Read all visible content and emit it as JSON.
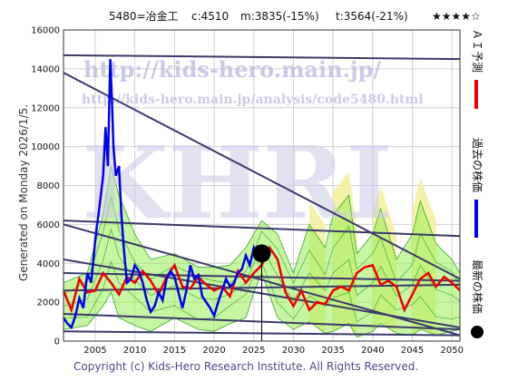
{
  "header": {
    "code_name": "5480=冶金工",
    "current": "c:4510",
    "m_value": "m:3835(-15%)",
    "t_value": "t:3564(-21%)",
    "rating": "★★★★☆"
  },
  "side_text": "Generated on Monday 2026/1/5.",
  "legend": {
    "ai_forecast": "ＡＩ予測",
    "past_price": "過去の株価",
    "latest_price": "最新の株価"
  },
  "watermark": {
    "big": "KHRI",
    "url1": "http://kids-hero.main.jp/",
    "url2": "http://kids-hero.main.jp/analysis/code5480.html"
  },
  "copyright": "Copyright (c) Kids-Hero Research Institute. All Rights Reserved.",
  "colors": {
    "past": "#0000ee",
    "forecast": "#ee0000",
    "band_fill": "#99ee55",
    "band_line": "#33aa22",
    "yellow_fill": "#f5f0a0",
    "trend": "#3a3a6a",
    "latest": "#000000"
  },
  "chart_data": {
    "type": "line",
    "xlim": [
      2001,
      2051
    ],
    "ylim": [
      0,
      16000
    ],
    "x_ticks": [
      2005,
      2010,
      2015,
      2020,
      2025,
      2030,
      2035,
      2040,
      2045,
      2050
    ],
    "y_ticks": [
      0,
      2000,
      4000,
      6000,
      8000,
      10000,
      12000,
      14000,
      16000
    ],
    "grid": true,
    "latest_point": {
      "x": 2026.0,
      "y": 4510
    },
    "series": [
      {
        "name": "過去の株価",
        "x": [
          2001,
          2001.5,
          2002,
          2002.5,
          2003,
          2003.5,
          2004,
          2004.5,
          2005,
          2005.5,
          2006,
          2006.3,
          2006.6,
          2006.9,
          2007.1,
          2007.3,
          2007.6,
          2008,
          2008.3,
          2008.6,
          2009,
          2009.5,
          2010,
          2010.5,
          2011,
          2011.5,
          2012,
          2012.5,
          2013,
          2013.5,
          2014,
          2014.5,
          2015,
          2015.5,
          2016,
          2016.5,
          2017,
          2017.5,
          2018,
          2018.5,
          2019,
          2019.5,
          2020,
          2020.5,
          2021,
          2021.5,
          2022,
          2022.5,
          2023,
          2023.5,
          2024,
          2024.5,
          2025,
          2025.5,
          2026
        ],
        "y": [
          1200,
          900,
          700,
          1300,
          2200,
          1700,
          3500,
          3000,
          5200,
          6800,
          8500,
          11000,
          9000,
          14500,
          12500,
          10000,
          8500,
          9000,
          6500,
          4800,
          3000,
          3200,
          3900,
          3600,
          3000,
          2100,
          1500,
          1800,
          2500,
          2100,
          3200,
          3600,
          3300,
          2500,
          1700,
          2600,
          3900,
          3200,
          3400,
          2300,
          2000,
          1700,
          1300,
          2000,
          2600,
          3200,
          2800,
          3000,
          3500,
          3700,
          4400,
          3900,
          4800,
          4300,
          4510
        ]
      },
      {
        "name": "ＡＩ予測",
        "x": [
          2001,
          2002,
          2003,
          2004,
          2005,
          2006,
          2007,
          2008,
          2009,
          2010,
          2011,
          2012,
          2013,
          2014,
          2015,
          2016,
          2017,
          2018,
          2019,
          2020,
          2021,
          2022,
          2023,
          2024,
          2025,
          2026,
          2027,
          2028,
          2029,
          2030,
          2031,
          2032,
          2033,
          2034,
          2035,
          2036,
          2037,
          2038,
          2039,
          2040,
          2041,
          2042,
          2043,
          2044,
          2045,
          2046,
          2047,
          2048,
          2049,
          2050,
          2051
        ],
        "y": [
          2600,
          1600,
          3200,
          2500,
          2600,
          3500,
          3000,
          2400,
          3300,
          3000,
          3600,
          3100,
          2400,
          3300,
          3900,
          2800,
          2700,
          3300,
          2900,
          2600,
          2800,
          2300,
          3600,
          3000,
          3500,
          3900,
          4800,
          4200,
          2500,
          1800,
          2600,
          1600,
          2000,
          1900,
          2600,
          2800,
          2600,
          3500,
          3800,
          3900,
          2900,
          3100,
          2800,
          1600,
          2400,
          3200,
          3500,
          2800,
          3300,
          3000,
          2600
        ]
      }
    ],
    "trend_lines": [
      {
        "x": [
          2001,
          2051
        ],
        "y": [
          14700,
          14500
        ]
      },
      {
        "x": [
          2001,
          2051
        ],
        "y": [
          6200,
          5400
        ]
      },
      {
        "x": [
          2001,
          2051
        ],
        "y": [
          3500,
          3100
        ]
      },
      {
        "x": [
          2001,
          2051
        ],
        "y": [
          2600,
          2900
        ]
      },
      {
        "x": [
          2001,
          2051
        ],
        "y": [
          6000,
          300
        ]
      },
      {
        "x": [
          2001,
          2051
        ],
        "y": [
          1400,
          600
        ]
      },
      {
        "x": [
          2001,
          2051
        ],
        "y": [
          13800,
          3200
        ]
      },
      {
        "x": [
          2001,
          2051
        ],
        "y": [
          4200,
          700
        ]
      },
      {
        "x": [
          2001,
          2051
        ],
        "y": [
          500,
          300
        ]
      }
    ],
    "bands": [
      {
        "x": [
          2001,
          2004,
          2006,
          2007,
          2008,
          2010,
          2012,
          2015,
          2018,
          2020,
          2022,
          2024,
          2025,
          2026,
          2028,
          2030,
          2032,
          2034,
          2035,
          2037,
          2038,
          2040,
          2041,
          2043,
          2045,
          2046,
          2048,
          2050,
          2051
        ],
        "lo": [
          600,
          800,
          1800,
          2500,
          1200,
          800,
          500,
          1200,
          600,
          500,
          900,
          1200,
          2500,
          3500,
          1200,
          600,
          1000,
          400,
          500,
          900,
          200,
          500,
          900,
          400,
          300,
          600,
          300,
          500,
          600
        ],
        "hi": [
          3000,
          3500,
          6500,
          9000,
          7500,
          5500,
          4200,
          4500,
          3800,
          3800,
          3900,
          4800,
          5500,
          6200,
          5500,
          3500,
          6000,
          4800,
          6500,
          7500,
          4500,
          5500,
          6800,
          4200,
          5500,
          7200,
          5000,
          4200,
          3500
        ],
        "yellow": [
          0,
          0,
          0,
          0,
          0,
          0,
          0,
          0,
          0,
          0,
          0,
          0,
          0,
          0,
          0,
          0,
          1,
          0,
          1,
          1,
          0,
          1,
          1,
          0,
          1,
          1,
          0,
          0,
          0
        ]
      }
    ]
  }
}
